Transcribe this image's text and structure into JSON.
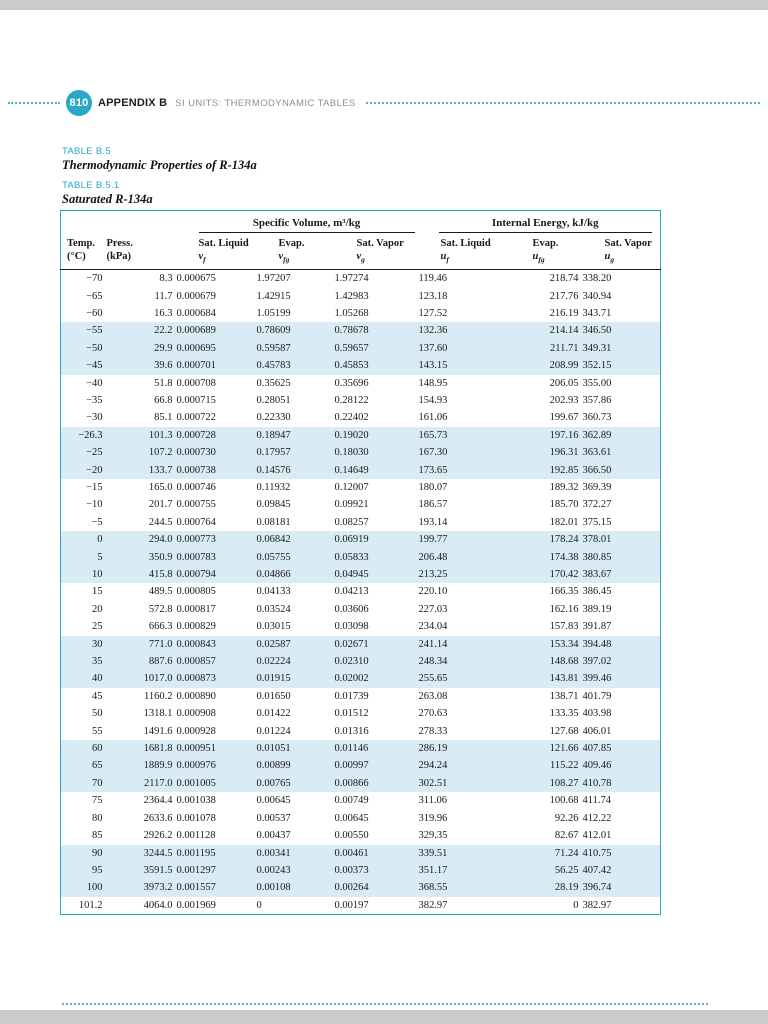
{
  "colors": {
    "accent_teal": "#2AA7C7",
    "row_band_blue": "#D9EBF4",
    "margin_gray": "#CBCBCB",
    "text_dark": "#1A1A1A",
    "subtitle_gray": "#8E8E8E"
  },
  "header": {
    "page_number": "810",
    "appendix_label": "APPENDIX B",
    "appendix_subtitle": "SI UNITS: THERMODYNAMIC TABLES"
  },
  "titles": {
    "label1": "TABLE B.5",
    "title1": "Thermodynamic Properties of R-134a",
    "label2": "TABLE B.5.1",
    "title2": "Saturated R-134a"
  },
  "table": {
    "group_headers": [
      "Specific Volume, m³/kg",
      "Internal Energy, kJ/kg"
    ],
    "columns": [
      {
        "line1": "Temp.",
        "line2": "(°C)"
      },
      {
        "line1": "Press.",
        "line2": "(kPa)"
      },
      {
        "line1": "Sat. Liquid",
        "sym": "v",
        "sub": "f"
      },
      {
        "line1": "Evap.",
        "sym": "v",
        "sub": "fg"
      },
      {
        "line1": "Sat. Vapor",
        "sym": "v",
        "sub": "g"
      },
      {
        "line1": "Sat. Liquid",
        "sym": "u",
        "sub": "f"
      },
      {
        "line1": "Evap.",
        "sym": "u",
        "sub": "fg"
      },
      {
        "line1": "Sat. Vapor",
        "sym": "u",
        "sub": "g"
      }
    ],
    "rows": [
      [
        "−70",
        "8.3",
        "0.000675",
        "1.97207",
        "1.97274",
        "119.46",
        "218.74",
        "338.20"
      ],
      [
        "−65",
        "11.7",
        "0.000679",
        "1.42915",
        "1.42983",
        "123.18",
        "217.76",
        "340.94"
      ],
      [
        "−60",
        "16.3",
        "0.000684",
        "1.05199",
        "1.05268",
        "127.52",
        "216.19",
        "343.71"
      ],
      [
        "−55",
        "22.2",
        "0.000689",
        "0.78609",
        "0.78678",
        "132.36",
        "214.14",
        "346.50"
      ],
      [
        "−50",
        "29.9",
        "0.000695",
        "0.59587",
        "0.59657",
        "137.60",
        "211.71",
        "349.31"
      ],
      [
        "−45",
        "39.6",
        "0.000701",
        "0.45783",
        "0.45853",
        "143.15",
        "208.99",
        "352.15"
      ],
      [
        "−40",
        "51.8",
        "0.000708",
        "0.35625",
        "0.35696",
        "148.95",
        "206.05",
        "355.00"
      ],
      [
        "−35",
        "66.8",
        "0.000715",
        "0.28051",
        "0.28122",
        "154.93",
        "202.93",
        "357.86"
      ],
      [
        "−30",
        "85.1",
        "0.000722",
        "0.22330",
        "0.22402",
        "161.06",
        "199.67",
        "360.73"
      ],
      [
        "−26.3",
        "101.3",
        "0.000728",
        "0.18947",
        "0.19020",
        "165.73",
        "197.16",
        "362.89"
      ],
      [
        "−25",
        "107.2",
        "0.000730",
        "0.17957",
        "0.18030",
        "167.30",
        "196.31",
        "363.61"
      ],
      [
        "−20",
        "133.7",
        "0.000738",
        "0.14576",
        "0.14649",
        "173.65",
        "192.85",
        "366.50"
      ],
      [
        "−15",
        "165.0",
        "0.000746",
        "0.11932",
        "0.12007",
        "180.07",
        "189.32",
        "369.39"
      ],
      [
        "−10",
        "201.7",
        "0.000755",
        "0.09845",
        "0.09921",
        "186.57",
        "185.70",
        "372.27"
      ],
      [
        "−5",
        "244.5",
        "0.000764",
        "0.08181",
        "0.08257",
        "193.14",
        "182.01",
        "375.15"
      ],
      [
        "0",
        "294.0",
        "0.000773",
        "0.06842",
        "0.06919",
        "199.77",
        "178.24",
        "378.01"
      ],
      [
        "5",
        "350.9",
        "0.000783",
        "0.05755",
        "0.05833",
        "206.48",
        "174.38",
        "380.85"
      ],
      [
        "10",
        "415.8",
        "0.000794",
        "0.04866",
        "0.04945",
        "213.25",
        "170.42",
        "383.67"
      ],
      [
        "15",
        "489.5",
        "0.000805",
        "0.04133",
        "0.04213",
        "220.10",
        "166.35",
        "386.45"
      ],
      [
        "20",
        "572.8",
        "0.000817",
        "0.03524",
        "0.03606",
        "227.03",
        "162.16",
        "389.19"
      ],
      [
        "25",
        "666.3",
        "0.000829",
        "0.03015",
        "0.03098",
        "234.04",
        "157.83",
        "391.87"
      ],
      [
        "30",
        "771.0",
        "0.000843",
        "0.02587",
        "0.02671",
        "241.14",
        "153.34",
        "394.48"
      ],
      [
        "35",
        "887.6",
        "0.000857",
        "0.02224",
        "0.02310",
        "248.34",
        "148.68",
        "397.02"
      ],
      [
        "40",
        "1017.0",
        "0.000873",
        "0.01915",
        "0.02002",
        "255.65",
        "143.81",
        "399.46"
      ],
      [
        "45",
        "1160.2",
        "0.000890",
        "0.01650",
        "0.01739",
        "263.08",
        "138.71",
        "401.79"
      ],
      [
        "50",
        "1318.1",
        "0.000908",
        "0.01422",
        "0.01512",
        "270.63",
        "133.35",
        "403.98"
      ],
      [
        "55",
        "1491.6",
        "0.000928",
        "0.01224",
        "0.01316",
        "278.33",
        "127.68",
        "406.01"
      ],
      [
        "60",
        "1681.8",
        "0.000951",
        "0.01051",
        "0.01146",
        "286.19",
        "121.66",
        "407.85"
      ],
      [
        "65",
        "1889.9",
        "0.000976",
        "0.00899",
        "0.00997",
        "294.24",
        "115.22",
        "409.46"
      ],
      [
        "70",
        "2117.0",
        "0.001005",
        "0.00765",
        "0.00866",
        "302.51",
        "108.27",
        "410.78"
      ],
      [
        "75",
        "2364.4",
        "0.001038",
        "0.00645",
        "0.00749",
        "311.06",
        "100.68",
        "411.74"
      ],
      [
        "80",
        "2633.6",
        "0.001078",
        "0.00537",
        "0.00645",
        "319.96",
        "92.26",
        "412.22"
      ],
      [
        "85",
        "2926.2",
        "0.001128",
        "0.00437",
        "0.00550",
        "329.35",
        "82.67",
        "412.01"
      ],
      [
        "90",
        "3244.5",
        "0.001195",
        "0.00341",
        "0.00461",
        "339.51",
        "71.24",
        "410.75"
      ],
      [
        "95",
        "3591.5",
        "0.001297",
        "0.00243",
        "0.00373",
        "351.17",
        "56.25",
        "407.42"
      ],
      [
        "100",
        "3973.2",
        "0.001557",
        "0.00108",
        "0.00264",
        "368.55",
        "28.19",
        "396.74"
      ],
      [
        "101.2",
        "4064.0",
        "0.001969",
        "0",
        "0.00197",
        "382.97",
        "0",
        "382.97"
      ]
    ]
  }
}
